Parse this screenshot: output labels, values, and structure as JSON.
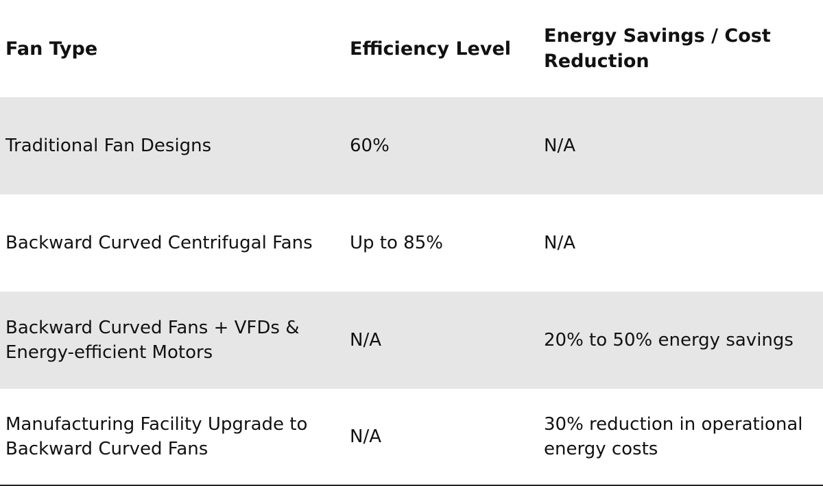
{
  "table": {
    "headers": [
      "Fan Type",
      "Efficiency Level",
      "Energy Savings / Cost Reduction"
    ],
    "rows": [
      {
        "fan_type": "Traditional Fan Designs",
        "efficiency": "60%",
        "savings": "N/A"
      },
      {
        "fan_type": "Backward Curved Centrifugal Fans",
        "efficiency": "Up to 85%",
        "savings": "N/A"
      },
      {
        "fan_type": "Backward Curved Fans + VFDs & Energy-efficient Motors",
        "efficiency": "N/A",
        "savings": "20% to 50% energy savings"
      },
      {
        "fan_type": "Manufacturing Facility Upgrade to Backward Curved Fans",
        "efficiency": "N/A",
        "savings": "30% reduction in operational energy costs"
      }
    ]
  }
}
